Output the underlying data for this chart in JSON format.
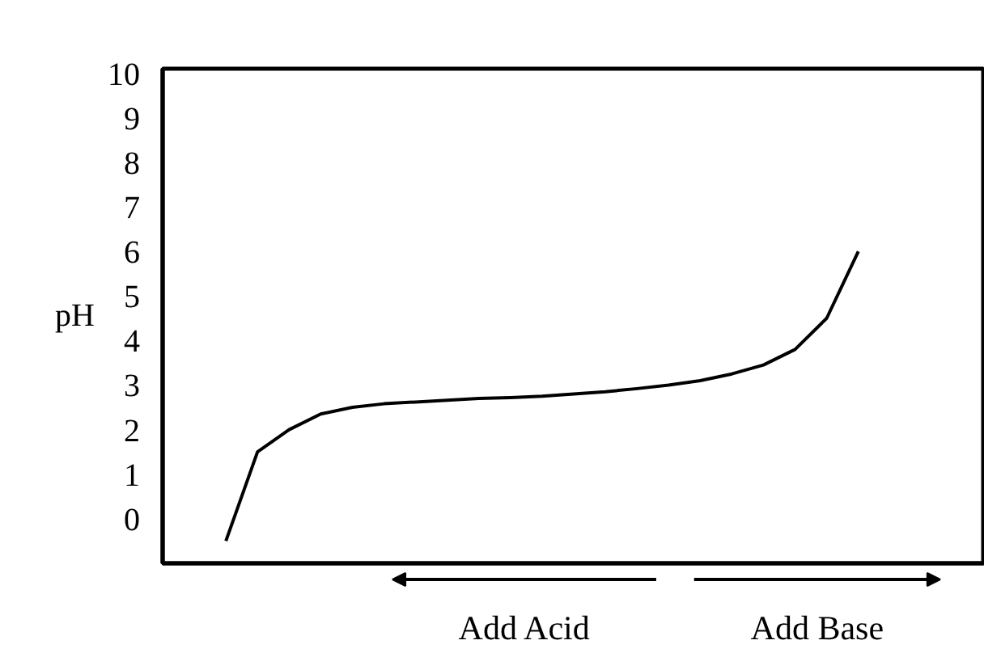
{
  "chart_data": {
    "type": "line",
    "ylabel": "pH",
    "categories": [
      null,
      null,
      null,
      null,
      null,
      null,
      null,
      null,
      null,
      null,
      null,
      null,
      null,
      null,
      null,
      null,
      null,
      null,
      null,
      null,
      null
    ],
    "series": [
      {
        "color": "#000000",
        "values": [
          -0.5,
          1.5,
          2.0,
          2.35,
          2.5,
          2.58,
          2.62,
          2.66,
          2.7,
          2.72,
          2.75,
          2.8,
          2.85,
          2.92,
          3.0,
          3.1,
          3.25,
          3.45,
          3.8,
          4.5,
          6.0
        ]
      }
    ],
    "ylim": [
      -1.0,
      10.1
    ],
    "yticks": [
      0,
      1,
      2,
      3,
      4,
      5,
      6,
      7,
      8,
      9,
      10
    ],
    "tick_labels": "y",
    "grid": false,
    "marker": "none",
    "line_style": "solid",
    "annotations": [
      "Add Acid",
      "Add Base"
    ]
  }
}
